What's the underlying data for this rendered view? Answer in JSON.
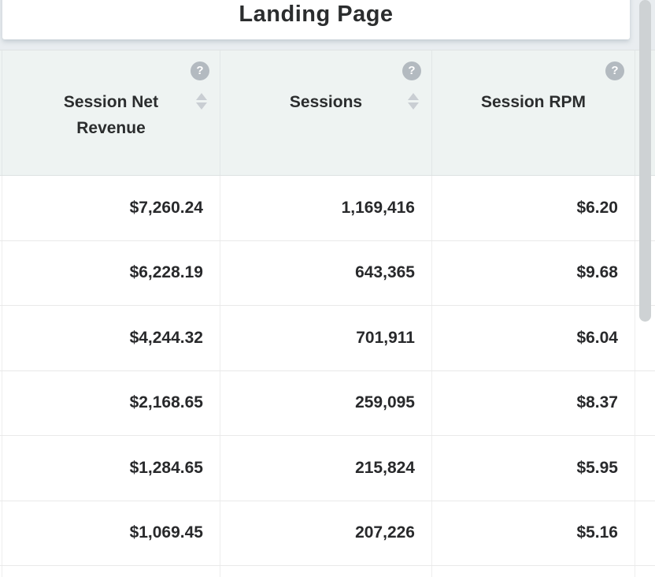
{
  "title": "Landing Page",
  "table": {
    "columns": [
      {
        "id": "session-net-revenue",
        "label": "Session Net Revenue",
        "sortable": true,
        "has_help": true
      },
      {
        "id": "sessions",
        "label": "Sessions",
        "sortable": true,
        "has_help": true
      },
      {
        "id": "session-rpm",
        "label": "Session RPM",
        "sortable": false,
        "has_help": true
      }
    ],
    "rows": [
      [
        "$7,260.24",
        "1,169,416",
        "$6.20"
      ],
      [
        "$6,228.19",
        "643,365",
        "$9.68"
      ],
      [
        "$4,244.32",
        "701,911",
        "$6.04"
      ],
      [
        "$2,168.65",
        "259,095",
        "$8.37"
      ],
      [
        "$1,284.65",
        "215,824",
        "$5.95"
      ],
      [
        "$1,069.45",
        "207,226",
        "$5.16"
      ]
    ]
  },
  "icons": {
    "help": "?",
    "sort": "sort-up-down"
  },
  "colors": {
    "page_background": "#e9edf0",
    "card_background": "#ffffff",
    "header_background": "#eef3f2",
    "row_background": "#ffffff",
    "text": "#2b2c2e",
    "help_icon_background": "#b3bac0",
    "sort_icon": "#c9ced3",
    "scrollbar_thumb": "#ced2d4"
  }
}
